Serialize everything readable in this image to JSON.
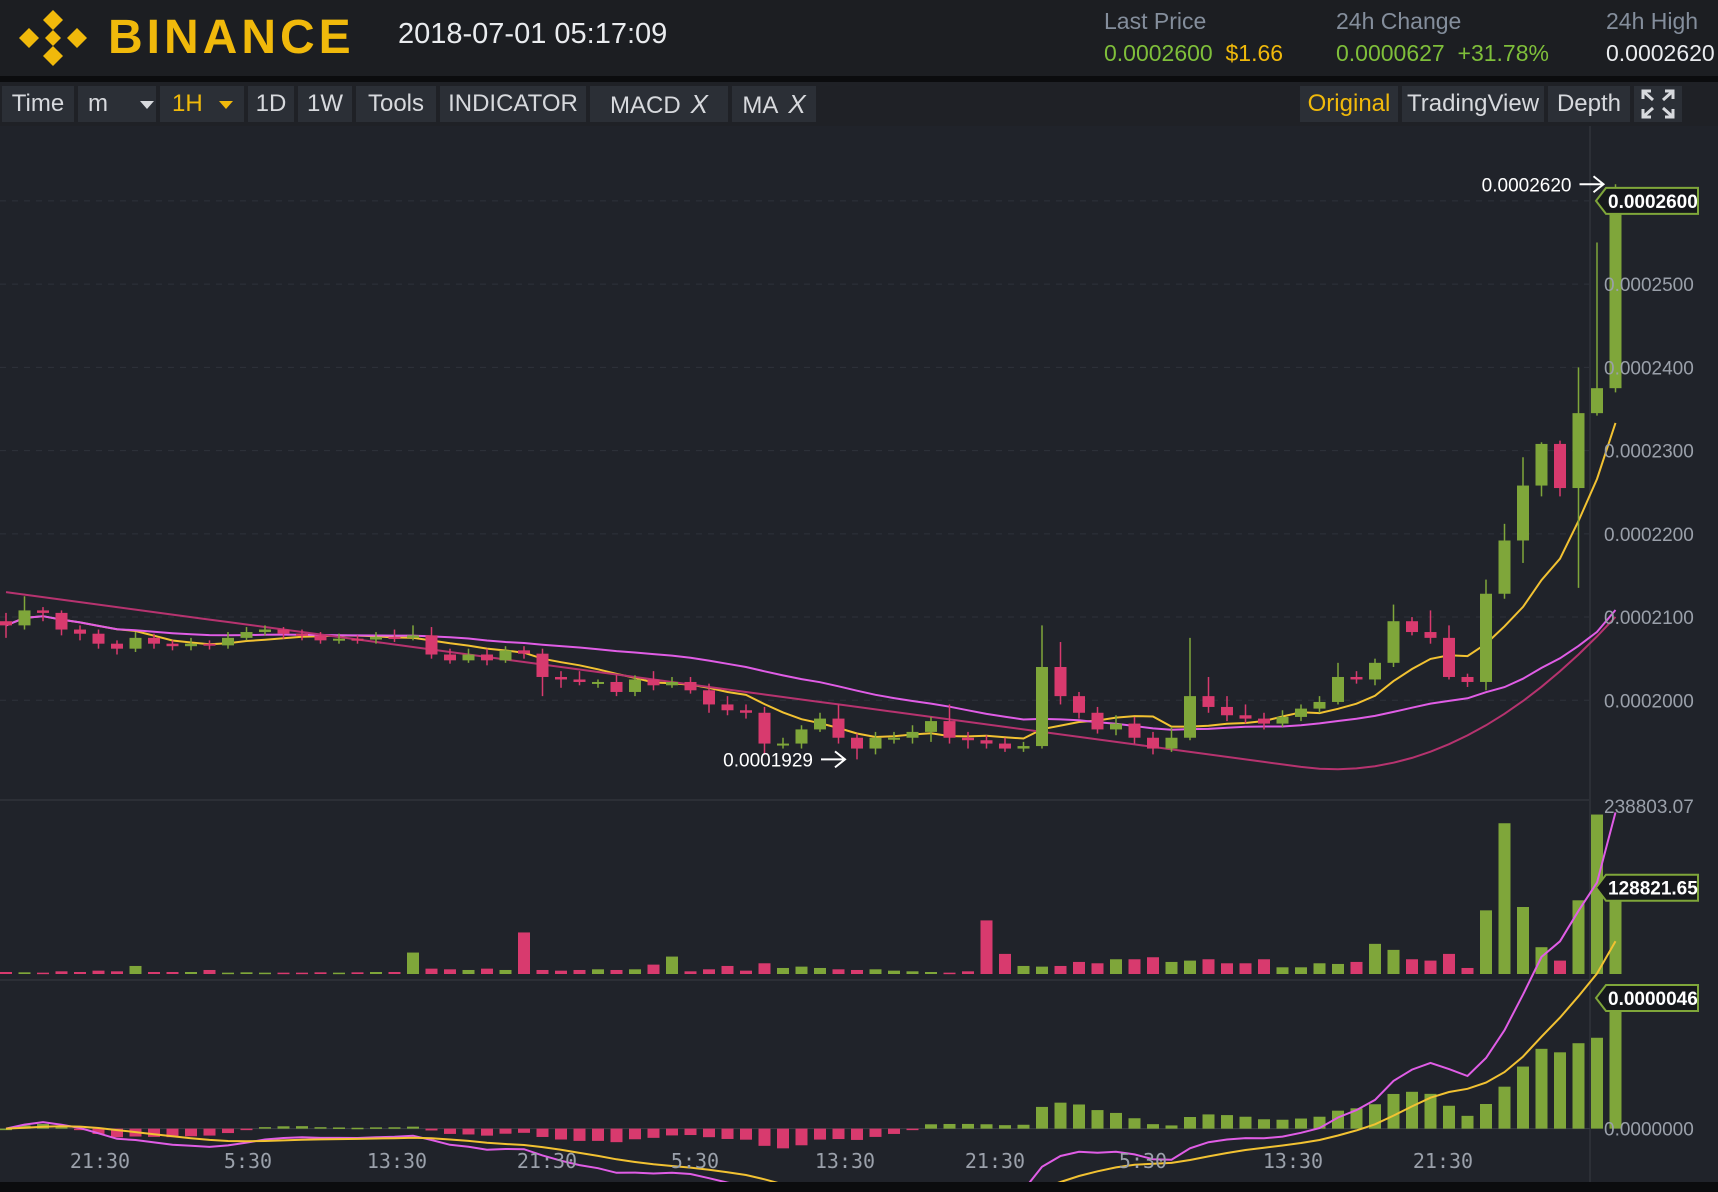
{
  "header": {
    "brand": "BINANCE",
    "datetime": "2018-07-01 05:17:09",
    "last_price_label": "Last Price",
    "last_price": "0.0002600",
    "last_price_usd": "$1.66",
    "change_label": "24h Change",
    "change_value": "0.0000627",
    "change_pct": "+31.78%",
    "high_label": "24h High",
    "high_value": "0.0002620"
  },
  "toolbar": {
    "time_label": "Time",
    "minute_label": "m",
    "hour_label": "1H",
    "day_label": "1D",
    "week_label": "1W",
    "tools_label": "Tools",
    "indicator_label": "INDICATOR",
    "macd_label": "MACD",
    "ma_label": "MA",
    "close_glyph": "X",
    "original_label": "Original",
    "tradingview_label": "TradingView",
    "depth_label": "Depth"
  },
  "colors": {
    "up": "#7fa63a",
    "down": "#d83a6e",
    "accent": "#f0b90b",
    "ma_short": "#f2c232",
    "ma_mid": "#e05de6",
    "ma_long": "#b6336f"
  },
  "chart_data": {
    "type": "candlestick",
    "price_axis_ticks": [
      "0.0002600",
      "0.0002500",
      "0.0002400",
      "0.0002300",
      "0.0002200",
      "0.0002100",
      "0.0002000"
    ],
    "price_range": [
      0.0001885,
      0.000269
    ],
    "high_marker": "0.0002620",
    "low_marker": "0.0001929",
    "last_price_tag": "0.0002600",
    "volume_axis_max": "238803.07",
    "volume_tag": "128821.65",
    "macd_tag": "0.0000046",
    "macd_zero": "0.0000000",
    "time_labels": [
      "21:30",
      "5:30",
      "13:30",
      "21:30",
      "5:30",
      "13:30",
      "21:30",
      "5:30",
      "13:30",
      "21:30"
    ],
    "candles": [
      [
        0.0002095,
        0.000209,
        0.0002105,
        0.0002075
      ],
      [
        0.000209,
        0.0002108,
        0.0002125,
        0.0002085
      ],
      [
        0.0002108,
        0.0002105,
        0.0002112,
        0.0002095
      ],
      [
        0.0002105,
        0.0002085,
        0.0002108,
        0.0002078
      ],
      [
        0.0002085,
        0.000208,
        0.000209,
        0.0002072
      ],
      [
        0.000208,
        0.0002068,
        0.0002085,
        0.0002062
      ],
      [
        0.0002068,
        0.0002062,
        0.0002072,
        0.0002055
      ],
      [
        0.0002062,
        0.0002075,
        0.0002082,
        0.0002058
      ],
      [
        0.0002075,
        0.0002068,
        0.000208,
        0.0002062
      ],
      [
        0.0002068,
        0.0002065,
        0.0002072,
        0.000206
      ],
      [
        0.0002065,
        0.0002068,
        0.0002075,
        0.000206
      ],
      [
        0.0002068,
        0.0002066,
        0.0002072,
        0.0002061
      ],
      [
        0.0002066,
        0.0002075,
        0.0002082,
        0.0002062
      ],
      [
        0.0002075,
        0.0002082,
        0.0002088,
        0.0002072
      ],
      [
        0.0002082,
        0.0002085,
        0.000209,
        0.0002078
      ],
      [
        0.0002085,
        0.000208,
        0.0002088,
        0.0002074
      ],
      [
        0.000208,
        0.0002078,
        0.0002085,
        0.0002072
      ],
      [
        0.0002078,
        0.0002072,
        0.0002082,
        0.0002068
      ],
      [
        0.0002072,
        0.0002074,
        0.000208,
        0.0002068
      ],
      [
        0.0002074,
        0.0002073,
        0.0002078,
        0.0002068
      ],
      [
        0.0002073,
        0.0002076,
        0.0002082,
        0.0002068
      ],
      [
        0.0002076,
        0.0002075,
        0.0002085,
        0.000207
      ],
      [
        0.0002075,
        0.0002078,
        0.000209,
        0.0002072
      ],
      [
        0.0002078,
        0.0002055,
        0.0002088,
        0.000205
      ],
      [
        0.0002055,
        0.0002048,
        0.0002062,
        0.0002044
      ],
      [
        0.0002048,
        0.0002055,
        0.0002062,
        0.0002045
      ],
      [
        0.0002055,
        0.0002048,
        0.0002062,
        0.0002042
      ],
      [
        0.0002048,
        0.000206,
        0.0002065,
        0.0002045
      ],
      [
        0.000206,
        0.0002056,
        0.0002065,
        0.000205
      ],
      [
        0.0002056,
        0.0002028,
        0.0002062,
        0.0002005
      ],
      [
        0.0002028,
        0.0002025,
        0.0002035,
        0.0002015
      ],
      [
        0.0002025,
        0.0002022,
        0.0002035,
        0.0002018
      ],
      [
        0.0002022,
        0.0002022,
        0.0002025,
        0.0002015
      ],
      [
        0.0002022,
        0.000201,
        0.000203,
        0.0002005
      ],
      [
        0.000201,
        0.0002025,
        0.000203,
        0.0002005
      ],
      [
        0.0002025,
        0.0002018,
        0.0002035,
        0.0002012
      ],
      [
        0.0002018,
        0.0002022,
        0.0002028,
        0.0002015
      ],
      [
        0.0002022,
        0.0002012,
        0.0002028,
        0.0002008
      ],
      [
        0.0002012,
        0.0001995,
        0.000202,
        0.0001985
      ],
      [
        0.0001995,
        0.0001988,
        0.0002005,
        0.0001982
      ],
      [
        0.0001988,
        0.0001985,
        0.0001995,
        0.0001978
      ],
      [
        0.0001985,
        0.0001948,
        0.0001992,
        0.0001935
      ],
      [
        0.0001948,
        0.0001948,
        0.0001955,
        0.0001942
      ],
      [
        0.0001948,
        0.0001965,
        0.000197,
        0.0001942
      ],
      [
        0.0001965,
        0.0001978,
        0.0001985,
        0.0001962
      ],
      [
        0.0001978,
        0.0001955,
        0.0001995,
        0.0001948
      ],
      [
        0.0001955,
        0.0001942,
        0.000196,
        0.0001929
      ],
      [
        0.0001942,
        0.0001955,
        0.0001962,
        0.0001935
      ],
      [
        0.0001955,
        0.0001955,
        0.0001962,
        0.0001948
      ],
      [
        0.0001955,
        0.0001962,
        0.000197,
        0.0001948
      ],
      [
        0.0001962,
        0.0001975,
        0.000198,
        0.000195
      ],
      [
        0.0001975,
        0.0001955,
        0.0001995,
        0.0001948
      ],
      [
        0.0001955,
        0.0001952,
        0.0001962,
        0.0001942
      ],
      [
        0.0001952,
        0.0001948,
        0.0001958,
        0.0001942
      ],
      [
        0.0001948,
        0.0001942,
        0.0001955,
        0.0001938
      ],
      [
        0.0001942,
        0.0001945,
        0.000195,
        0.0001938
      ],
      [
        0.0001945,
        0.000204,
        0.000209,
        0.0001942
      ],
      [
        0.000204,
        0.0002005,
        0.000207,
        0.0001995
      ],
      [
        0.0002005,
        0.0001985,
        0.000201,
        0.0001978
      ],
      [
        0.0001985,
        0.0001965,
        0.0001992,
        0.000196
      ],
      [
        0.0001965,
        0.0001972,
        0.0001982,
        0.0001958
      ],
      [
        0.0001972,
        0.0001955,
        0.000198,
        0.0001948
      ],
      [
        0.0001955,
        0.0001942,
        0.0001962,
        0.0001935
      ],
      [
        0.0001942,
        0.0001955,
        0.0001968,
        0.0001938
      ],
      [
        0.0001955,
        0.0002005,
        0.0002075,
        0.0001952
      ],
      [
        0.0002005,
        0.0001992,
        0.0002028,
        0.0001985
      ],
      [
        0.0001992,
        0.0001982,
        0.0002005,
        0.0001975
      ],
      [
        0.0001982,
        0.0001978,
        0.0001995,
        0.0001972
      ],
      [
        0.0001978,
        0.0001972,
        0.0001985,
        0.0001965
      ],
      [
        0.0001972,
        0.000198,
        0.0001988,
        0.0001968
      ],
      [
        0.000198,
        0.000199,
        0.0001995,
        0.0001975
      ],
      [
        0.000199,
        0.0001998,
        0.0002005,
        0.0001985
      ],
      [
        0.0001998,
        0.0002028,
        0.0002045,
        0.0001995
      ],
      [
        0.0002028,
        0.0002025,
        0.0002035,
        0.000202
      ],
      [
        0.0002025,
        0.0002045,
        0.000205,
        0.0002018
      ],
      [
        0.0002045,
        0.0002095,
        0.0002115,
        0.000204
      ],
      [
        0.0002095,
        0.0002082,
        0.00021,
        0.0002078
      ],
      [
        0.0002082,
        0.0002075,
        0.0002108,
        0.0002068
      ],
      [
        0.0002075,
        0.0002028,
        0.000209,
        0.0002025
      ],
      [
        0.0002028,
        0.0002022,
        0.0002032,
        0.0002016
      ],
      [
        0.0002022,
        0.0002128,
        0.0002145,
        0.0002012
      ],
      [
        0.0002128,
        0.0002192,
        0.0002212,
        0.0002122
      ],
      [
        0.0002192,
        0.0002258,
        0.0002292,
        0.0002165
      ],
      [
        0.0002258,
        0.0002308,
        0.000231,
        0.0002245
      ],
      [
        0.0002308,
        0.0002255,
        0.0002312,
        0.0002245
      ],
      [
        0.0002255,
        0.0002345,
        0.00024,
        0.0002135
      ],
      [
        0.0002345,
        0.0002375,
        0.000255,
        0.0002342
      ],
      [
        0.0002375,
        0.00026,
        0.000262,
        0.000237
      ]
    ],
    "volume_scale_max": 238803.07,
    "volumes": [
      3000,
      2500,
      2000,
      4000,
      3000,
      5000,
      4000,
      12000,
      3000,
      3000,
      3000,
      6000,
      2000,
      2500,
      2000,
      2000,
      2000,
      2500,
      2000,
      2500,
      3000,
      3000,
      32000,
      8000,
      7000,
      6000,
      8000,
      6000,
      62000,
      6000,
      5000,
      6000,
      7000,
      6000,
      7000,
      14000,
      26000,
      4000,
      7000,
      12000,
      5000,
      16000,
      9000,
      11000,
      9000,
      7000,
      6000,
      7000,
      5000,
      4000,
      3000,
      2000,
      4000,
      80000,
      30000,
      12000,
      11000,
      12000,
      18000,
      16000,
      22000,
      22000,
      25000,
      18000,
      20000,
      22000,
      16000,
      16000,
      22000,
      10000,
      10000,
      16000,
      15000,
      18000,
      45000,
      36000,
      22000,
      20000,
      30000,
      9000,
      95000,
      225000,
      100000,
      40000,
      20000,
      110000,
      238000,
      128821.65
    ],
    "macd_range": [
      -4e-07,
      4.6e-06
    ]
  }
}
